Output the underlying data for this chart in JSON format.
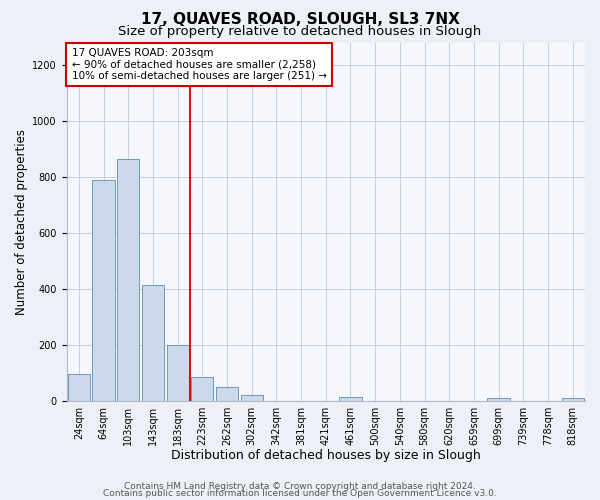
{
  "title": "17, QUAVES ROAD, SLOUGH, SL3 7NX",
  "subtitle": "Size of property relative to detached houses in Slough",
  "xlabel": "Distribution of detached houses by size in Slough",
  "ylabel": "Number of detached properties",
  "bar_labels": [
    "24sqm",
    "64sqm",
    "103sqm",
    "143sqm",
    "183sqm",
    "223sqm",
    "262sqm",
    "302sqm",
    "342sqm",
    "381sqm",
    "421sqm",
    "461sqm",
    "500sqm",
    "540sqm",
    "580sqm",
    "620sqm",
    "659sqm",
    "699sqm",
    "739sqm",
    "778sqm",
    "818sqm"
  ],
  "bar_values": [
    95,
    790,
    865,
    415,
    200,
    85,
    50,
    20,
    0,
    0,
    0,
    15,
    0,
    0,
    0,
    0,
    0,
    10,
    0,
    0,
    10
  ],
  "bar_color": "#ccd9ea",
  "bar_edge_color": "#5b8db8",
  "vline_x": 4.5,
  "vline_color": "#cc0000",
  "annotation_line1": "17 QUAVES ROAD: 203sqm",
  "annotation_line2": "← 90% of detached houses are smaller (2,258)",
  "annotation_line3": "10% of semi-detached houses are larger (251) →",
  "ylim": [
    0,
    1280
  ],
  "yticks": [
    0,
    200,
    400,
    600,
    800,
    1000,
    1200
  ],
  "footer1": "Contains HM Land Registry data © Crown copyright and database right 2024.",
  "footer2": "Contains public sector information licensed under the Open Government Licence v3.0.",
  "bg_color": "#edf1f7",
  "plot_bg_color": "#f5f7fc",
  "title_fontsize": 11,
  "subtitle_fontsize": 9.5,
  "xlabel_fontsize": 9,
  "ylabel_fontsize": 8.5,
  "tick_fontsize": 7,
  "annotation_fontsize": 7.5,
  "footer_fontsize": 6.5
}
